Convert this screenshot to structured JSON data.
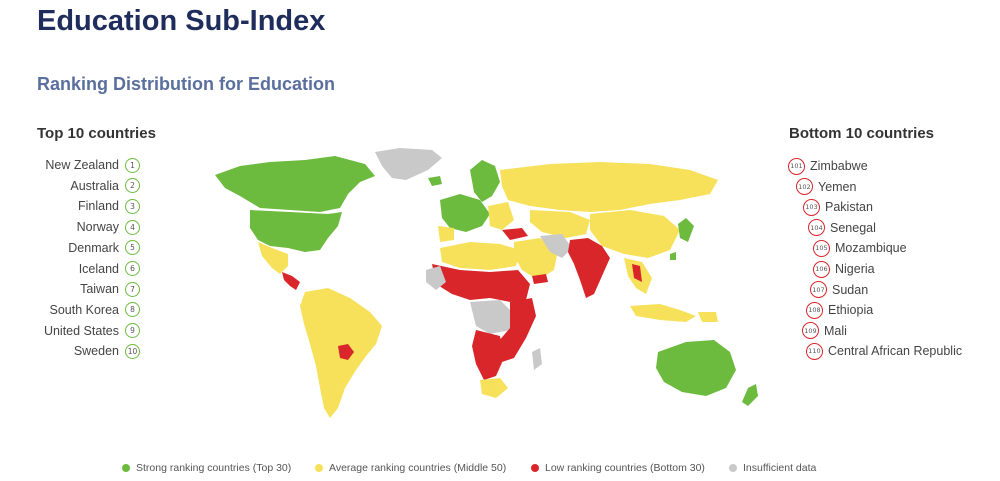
{
  "title": "Education Sub-Index",
  "subtitle": "Ranking Distribution for Education",
  "top_heading": "Top 10 countries",
  "bottom_heading": "Bottom 10 countries",
  "top10": [
    {
      "rank": "1",
      "name": "New Zealand"
    },
    {
      "rank": "2",
      "name": "Australia"
    },
    {
      "rank": "3",
      "name": "Finland"
    },
    {
      "rank": "4",
      "name": "Norway"
    },
    {
      "rank": "5",
      "name": "Denmark"
    },
    {
      "rank": "6",
      "name": "Iceland"
    },
    {
      "rank": "7",
      "name": "Taiwan"
    },
    {
      "rank": "8",
      "name": "South Korea"
    },
    {
      "rank": "9",
      "name": "United States"
    },
    {
      "rank": "10",
      "name": "Sweden"
    }
  ],
  "bottom10": [
    {
      "rank": "101",
      "name": "Zimbabwe"
    },
    {
      "rank": "102",
      "name": "Yemen"
    },
    {
      "rank": "103",
      "name": "Pakistan"
    },
    {
      "rank": "104",
      "name": "Senegal"
    },
    {
      "rank": "105",
      "name": "Mozambique"
    },
    {
      "rank": "106",
      "name": "Nigeria"
    },
    {
      "rank": "107",
      "name": "Sudan"
    },
    {
      "rank": "108",
      "name": "Ethiopia"
    },
    {
      "rank": "109",
      "name": "Mali"
    },
    {
      "rank": "110",
      "name": "Central African Republic"
    }
  ],
  "legend": [
    {
      "key": "strong",
      "label": "Strong ranking countries (Top 30)",
      "color": "#6cbb3e"
    },
    {
      "key": "average",
      "label": "Average ranking countries (Middle 50)",
      "color": "#f7e15a"
    },
    {
      "key": "low",
      "label": "Low ranking countries (Bottom 30)",
      "color": "#d9262a"
    },
    {
      "key": "insufficient",
      "label": "Insufficient data",
      "color": "#c9c9c9"
    }
  ],
  "colors": {
    "title": "#1f2d5c",
    "subtitle": "#5a6f9e",
    "strong": "#6cbb3e",
    "average": "#f7e15a",
    "low": "#d9262a",
    "insufficient": "#c9c9c9"
  }
}
